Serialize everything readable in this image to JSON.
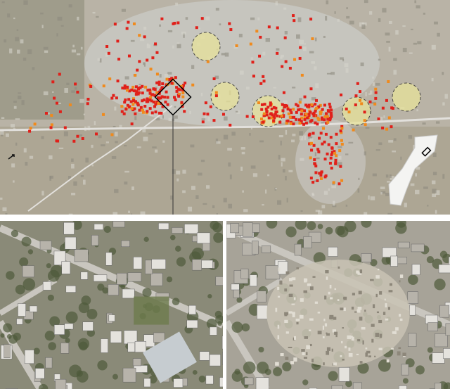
{
  "colors": {
    "terrain": "#b9b3a6",
    "urban": "#c8c6c1",
    "fields": "#a59c88",
    "vegetation": "#6f7458",
    "road": "#e2e0dc",
    "damage_destroyed": "#e0201a",
    "damage_severe": "#f08a1c",
    "area_highlight": "#e8e39a",
    "before_base": "#8a8a78",
    "after_base": "#a7a398"
  },
  "icons": {
    "locator_map": "gaza-strip-outline",
    "focus_box": "diamond-frame",
    "north_arrow": "arrow-icon"
  }
}
